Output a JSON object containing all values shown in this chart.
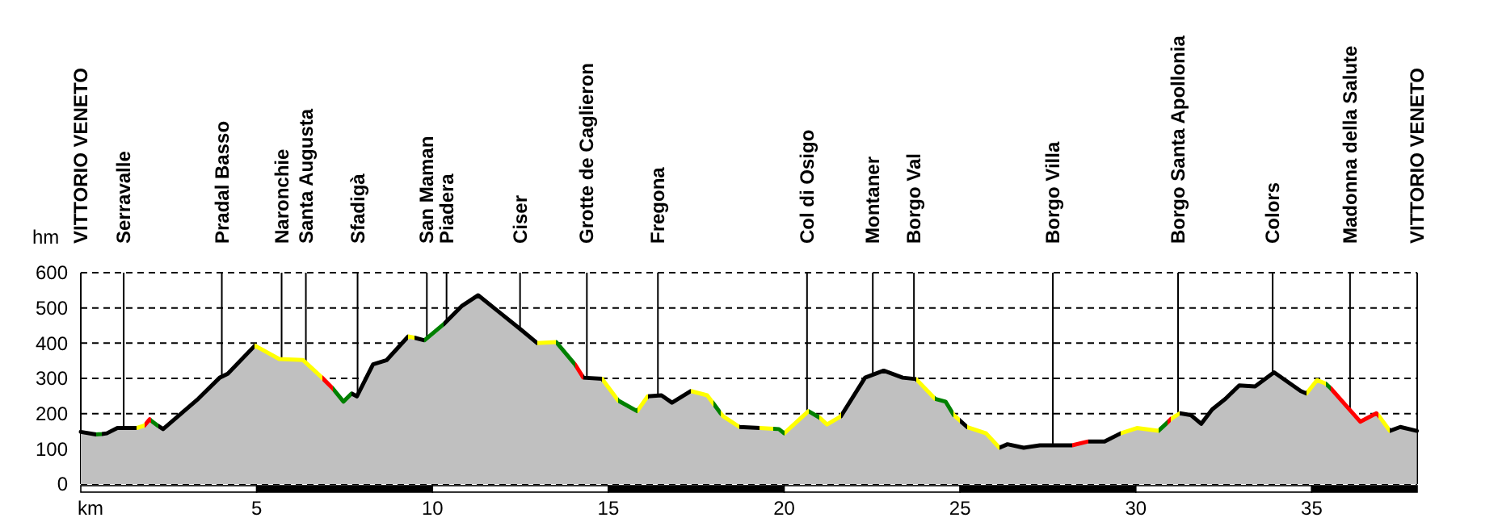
{
  "chart_data": {
    "type": "area",
    "xlabel": "km",
    "ylabel": "hm",
    "xlim": [
      0,
      38
    ],
    "ylim": [
      0,
      600
    ],
    "xticks": [
      5,
      10,
      15,
      20,
      25,
      30,
      35
    ],
    "yticks": [
      0,
      100,
      200,
      300,
      400,
      500,
      600
    ],
    "grid": "y",
    "x": [
      0,
      0.43,
      0.6,
      0.74,
      1.04,
      1.58,
      1.81,
      1.96,
      2.0,
      2.2,
      2.34,
      3.34,
      3.95,
      4.18,
      4.95,
      5.64,
      6.32,
      6.86,
      7.16,
      7.47,
      7.7,
      7.85,
      8.31,
      8.7,
      9.31,
      9.5,
      9.77,
      10.31,
      10.84,
      11.3,
      11.91,
      12.52,
      12.98,
      13.52,
      14.05,
      14.29,
      14.82,
      15.28,
      15.82,
      16.12,
      16.51,
      16.81,
      17.35,
      17.81,
      18.0,
      18.2,
      18.27,
      18.73,
      19.31,
      19.7,
      19.85,
      20,
      20.69,
      21,
      21.22,
      21.61,
      22.3,
      22.83,
      23.37,
      23.75,
      24.29,
      24.59,
      24.82,
      25.0,
      25.2,
      25.74,
      26.12,
      26.35,
      26.81,
      27.27,
      28.19,
      28.65,
      29.11,
      29.57,
      30.03,
      30.64,
      30.9,
      31.0,
      31.25,
      31.56,
      31.86,
      32.17,
      32.55,
      32.94,
      33.39,
      33.93,
      34.69,
      34.85,
      35.15,
      35.4,
      35.54,
      36.07,
      36.38,
      36.84,
      36.9,
      37.22,
      37.52,
      37.99
    ],
    "series": [
      {
        "color": "#c0c0c0",
        "values": [
          148,
          141,
          142,
          144,
          159,
          159,
          166,
          184,
          180,
          165,
          156,
          242,
          302,
          313,
          393,
          355,
          352,
          302,
          272,
          234,
          257,
          249,
          340,
          352,
          419,
          415,
          408,
          453,
          506,
          536,
          487,
          438,
          400,
          403,
          340,
          302,
          299,
          237,
          207,
          249,
          252,
          231,
          264,
          252,
          227,
          200,
          192,
          162,
          159,
          157,
          156,
          144,
          207,
          189,
          169,
          192,
          302,
          322,
          302,
          298,
          242,
          234,
          196,
          180,
          162,
          144,
          103,
          113,
          103,
          110,
          110,
          121,
          121,
          144,
          159,
          151,
          175,
          185,
          201,
          196,
          171,
          212,
          242,
          280,
          277,
          317,
          264,
          257,
          295,
          285,
          272,
          212,
          177,
          201,
          195,
          151,
          162,
          151
        ],
        "colors": [
          "#000000",
          "#008000",
          "#000000",
          "#000000",
          "#000000",
          "#ffff00",
          "#ff0000",
          "#ff0000",
          "#008000",
          "#000000",
          "#000000",
          "#000000",
          "#000000",
          "#000000",
          "#ffff00",
          "#ffff00",
          "#ffff00",
          "#ff0000",
          "#008000",
          "#008000",
          "#000000",
          "#000000",
          "#000000",
          "#000000",
          "#ffff00",
          "#000000",
          "#008000",
          "#000000",
          "#000000",
          "#000000",
          "#000000",
          "#000000",
          "#ffff00",
          "#008000",
          "#ff0000",
          "#000000",
          "#ffff00",
          "#008000",
          "#ffff00",
          "#000000",
          "#000000",
          "#000000",
          "#ffff00",
          "#ffff00",
          "#008000",
          "#ffff00",
          "#ffff00",
          "#000000",
          "#ffff00",
          "#008000",
          "#008000",
          "#ffff00",
          "#008000",
          "#ffff00",
          "#ffff00",
          "#000000",
          "#000000",
          "#000000",
          "#000000",
          "#ffff00",
          "#008000",
          "#008000",
          "#ffff00",
          "#000000",
          "#ffff00",
          "#ffff00",
          "#000000",
          "#000000",
          "#000000",
          "#000000",
          "#ff0000",
          "#000000",
          "#000000",
          "#ffff00",
          "#ffff00",
          "#008000",
          "#ff0000",
          "#ffff00",
          "#000000",
          "#000000",
          "#000000",
          "#000000",
          "#000000",
          "#000000",
          "#000000",
          "#000000",
          "#000000",
          "#ffff00",
          "#ffff00",
          "#008000",
          "#ff0000",
          "#ff0000",
          "#ff0000",
          "#ff0000",
          "#ffff00",
          "#000000",
          "#000000",
          "#000000"
        ]
      }
    ],
    "ref_lines": [
      {
        "axis": "x",
        "value": 0,
        "label": "VITTORIO VENETO"
      },
      {
        "axis": "x",
        "value": 1.22,
        "label": "Serravalle"
      },
      {
        "axis": "x",
        "value": 4.01,
        "label": "Pradal Basso"
      },
      {
        "axis": "x",
        "value": 5.71,
        "label": "Naronchie"
      },
      {
        "axis": "x",
        "value": 6.4,
        "label": "Santa Augusta"
      },
      {
        "axis": "x",
        "value": 7.87,
        "label": "Sfadigà"
      },
      {
        "axis": "x",
        "value": 9.84,
        "label": "San Maman"
      },
      {
        "axis": "x",
        "value": 10.4,
        "label": "Piadera"
      },
      {
        "axis": "x",
        "value": 12.49,
        "label": "Ciser"
      },
      {
        "axis": "x",
        "value": 14.39,
        "label": "Grotte de Caglieron"
      },
      {
        "axis": "x",
        "value": 16.41,
        "label": "Fregona"
      },
      {
        "axis": "x",
        "value": 20.65,
        "label": "Col di Osigo"
      },
      {
        "axis": "x",
        "value": 22.52,
        "label": "Montaner"
      },
      {
        "axis": "x",
        "value": 23.69,
        "label": "Borgo Val"
      },
      {
        "axis": "x",
        "value": 27.64,
        "label": "Borgo Villa"
      },
      {
        "axis": "x",
        "value": 31.2,
        "label": "Borgo Santa Apollonia"
      },
      {
        "axis": "x",
        "value": 33.89,
        "label": "Colors"
      },
      {
        "axis": "x",
        "value": 36.09,
        "label": "Madonna della Salute"
      },
      {
        "axis": "x",
        "value": 38,
        "label": "VITTORIO VENETO"
      }
    ]
  }
}
